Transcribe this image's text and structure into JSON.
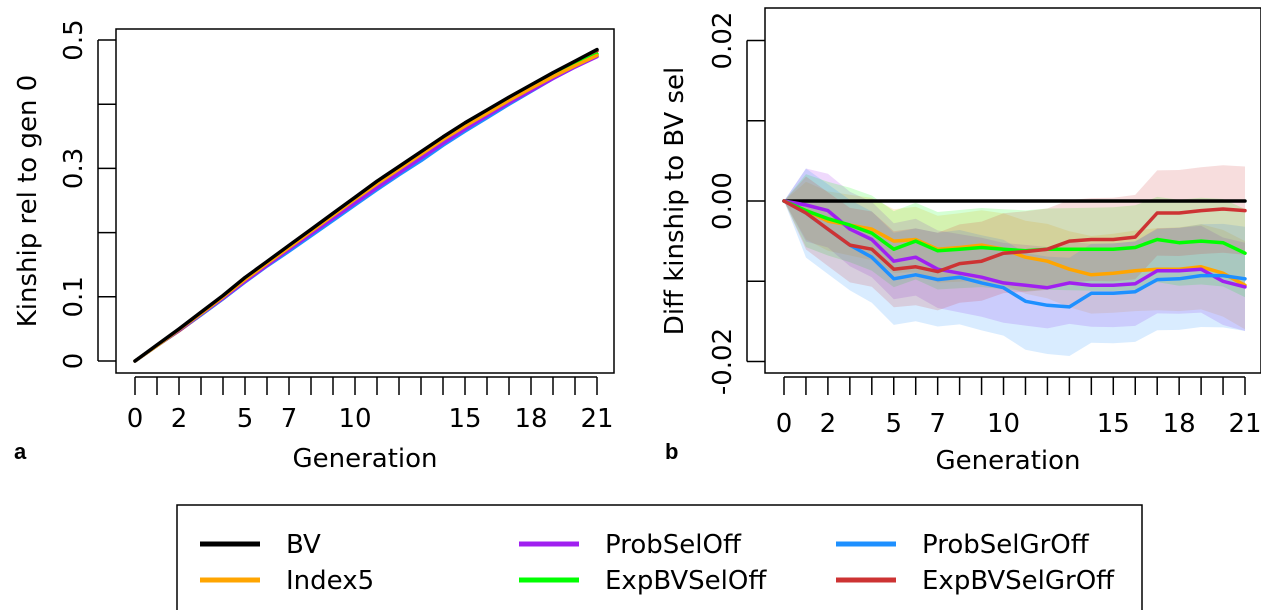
{
  "chart_data": [
    {
      "type": "line",
      "panel_label": "a",
      "xlabel": "Generation",
      "ylabel": "Kinship rel to gen 0",
      "x_tick_labels": [
        "0",
        "2",
        "5",
        "7",
        "10",
        "15",
        "18",
        "21"
      ],
      "x_tick_values": [
        0,
        2,
        5,
        7,
        10,
        15,
        18,
        21
      ],
      "y_tick_labels": [
        "0",
        "0.1",
        "0.3",
        "0.5"
      ],
      "y_tick_values": [
        0,
        0.1,
        0.3,
        0.5
      ],
      "xlim": [
        0,
        21
      ],
      "ylim": [
        0,
        0.5
      ],
      "x": [
        0,
        1,
        2,
        3,
        4,
        5,
        6,
        7,
        8,
        9,
        10,
        11,
        12,
        13,
        14,
        15,
        16,
        17,
        18,
        19,
        20,
        21
      ],
      "series": [
        {
          "name": "BV",
          "color": "#000000",
          "values": [
            0,
            0.025,
            0.05,
            0.076,
            0.102,
            0.13,
            0.155,
            0.18,
            0.205,
            0.23,
            0.255,
            0.28,
            0.303,
            0.326,
            0.349,
            0.371,
            0.391,
            0.411,
            0.43,
            0.449,
            0.467,
            0.485
          ]
        },
        {
          "name": "Index5",
          "color": "#FFA500",
          "values": [
            0,
            0.024,
            0.049,
            0.074,
            0.1,
            0.127,
            0.152,
            0.177,
            0.202,
            0.227,
            0.252,
            0.276,
            0.299,
            0.322,
            0.345,
            0.366,
            0.386,
            0.406,
            0.425,
            0.443,
            0.46,
            0.476
          ]
        },
        {
          "name": "ProbSelOff",
          "color": "#A020F0",
          "values": [
            0,
            0.024,
            0.048,
            0.073,
            0.098,
            0.124,
            0.149,
            0.174,
            0.198,
            0.222,
            0.246,
            0.27,
            0.293,
            0.316,
            0.339,
            0.361,
            0.382,
            0.402,
            0.421,
            0.44,
            0.458,
            0.474
          ]
        },
        {
          "name": "ExpBVSelOff",
          "color": "#00FF00",
          "values": [
            0,
            0.024,
            0.048,
            0.074,
            0.099,
            0.126,
            0.151,
            0.175,
            0.2,
            0.224,
            0.249,
            0.273,
            0.297,
            0.32,
            0.343,
            0.365,
            0.385,
            0.405,
            0.425,
            0.444,
            0.462,
            0.478
          ]
        },
        {
          "name": "ProbSelGrOff",
          "color": "#1E90FF",
          "values": [
            0,
            0.024,
            0.048,
            0.072,
            0.097,
            0.123,
            0.148,
            0.171,
            0.195,
            0.219,
            0.243,
            0.267,
            0.29,
            0.312,
            0.336,
            0.358,
            0.379,
            0.4,
            0.42,
            0.44,
            0.458,
            0.475
          ]
        },
        {
          "name": "ExpBVSelGrOff",
          "color": "#CD3333",
          "values": [
            0,
            0.024,
            0.047,
            0.072,
            0.097,
            0.124,
            0.149,
            0.173,
            0.198,
            0.223,
            0.248,
            0.273,
            0.297,
            0.321,
            0.344,
            0.366,
            0.387,
            0.408,
            0.428,
            0.447,
            0.466,
            0.483
          ]
        }
      ]
    },
    {
      "type": "line",
      "panel_label": "b",
      "xlabel": "Generation",
      "ylabel": "Diff kinship to BV sel",
      "x_tick_labels": [
        "0",
        "2",
        "5",
        "7",
        "10",
        "15",
        "18",
        "21"
      ],
      "x_tick_values": [
        0,
        2,
        5,
        7,
        10,
        15,
        18,
        21
      ],
      "y_tick_labels": [
        "-0.02",
        "0.00",
        "0.02"
      ],
      "y_tick_values": [
        -0.02,
        0.0,
        0.02
      ],
      "xlim": [
        0,
        21
      ],
      "ylim": [
        -0.0215,
        0.0215
      ],
      "x": [
        0,
        1,
        2,
        3,
        4,
        5,
        6,
        7,
        8,
        9,
        10,
        11,
        12,
        13,
        14,
        15,
        16,
        17,
        18,
        19,
        20,
        21
      ],
      "series": [
        {
          "name": "BV",
          "color": "#000000",
          "values": [
            0,
            0,
            0,
            0,
            0,
            0,
            0,
            0,
            0,
            0,
            0,
            0,
            0,
            0,
            0,
            0,
            0,
            0,
            0,
            0,
            0,
            0
          ]
        },
        {
          "name": "Index5",
          "color": "#FFA500",
          "band": [
            0.0035,
            0.0055
          ],
          "values": [
            0,
            -0.0012,
            -0.0025,
            -0.003,
            -0.0035,
            -0.005,
            -0.0048,
            -0.006,
            -0.0058,
            -0.0055,
            -0.006,
            -0.007,
            -0.0075,
            -0.0085,
            -0.0092,
            -0.009,
            -0.0087,
            -0.0085,
            -0.0085,
            -0.0082,
            -0.009,
            -0.0105
          ]
        },
        {
          "name": "ProbSelOff",
          "color": "#A020F0",
          "band": [
            0.0045,
            0.0055
          ],
          "values": [
            0,
            -0.0005,
            -0.0012,
            -0.0035,
            -0.0048,
            -0.0075,
            -0.007,
            -0.0085,
            -0.009,
            -0.0095,
            -0.0102,
            -0.0105,
            -0.0108,
            -0.0102,
            -0.0105,
            -0.0105,
            -0.0103,
            -0.0087,
            -0.0087,
            -0.0085,
            -0.01,
            -0.0107
          ]
        },
        {
          "name": "ExpBVSelOff",
          "color": "#00FF00",
          "band": [
            0.0045,
            0.0055
          ],
          "values": [
            0,
            -0.0012,
            -0.0022,
            -0.003,
            -0.004,
            -0.006,
            -0.005,
            -0.0062,
            -0.006,
            -0.0058,
            -0.006,
            -0.0062,
            -0.006,
            -0.006,
            -0.006,
            -0.006,
            -0.0058,
            -0.0048,
            -0.0052,
            -0.005,
            -0.0052,
            -0.0065
          ]
        },
        {
          "name": "ProbSelGrOff",
          "color": "#1E90FF",
          "band": [
            0.0055,
            0.0065
          ],
          "values": [
            0,
            -0.0015,
            -0.0035,
            -0.0055,
            -0.007,
            -0.0097,
            -0.0092,
            -0.0098,
            -0.0095,
            -0.0102,
            -0.0108,
            -0.0125,
            -0.013,
            -0.0132,
            -0.0115,
            -0.0115,
            -0.0113,
            -0.0098,
            -0.0097,
            -0.0093,
            -0.0093,
            -0.0097
          ]
        },
        {
          "name": "ExpBVSelGrOff",
          "color": "#CD3333",
          "band": [
            0.0045,
            0.0055
          ],
          "values": [
            0,
            -0.0015,
            -0.0035,
            -0.0055,
            -0.006,
            -0.0085,
            -0.0082,
            -0.0088,
            -0.0078,
            -0.0075,
            -0.0065,
            -0.0063,
            -0.006,
            -0.005,
            -0.0048,
            -0.0048,
            -0.0045,
            -0.0015,
            -0.0015,
            -0.0012,
            -0.001,
            -0.0012
          ]
        }
      ]
    }
  ],
  "legend": {
    "items": [
      {
        "name": "BV",
        "color": "#000000"
      },
      {
        "name": "Index5",
        "color": "#FFA500"
      },
      {
        "name": "ProbSelOff",
        "color": "#A020F0"
      },
      {
        "name": "ExpBVSelOff",
        "color": "#00FF00"
      },
      {
        "name": "ProbSelGrOff",
        "color": "#1E90FF"
      },
      {
        "name": "ExpBVSelGrOff",
        "color": "#CD3333"
      }
    ]
  }
}
